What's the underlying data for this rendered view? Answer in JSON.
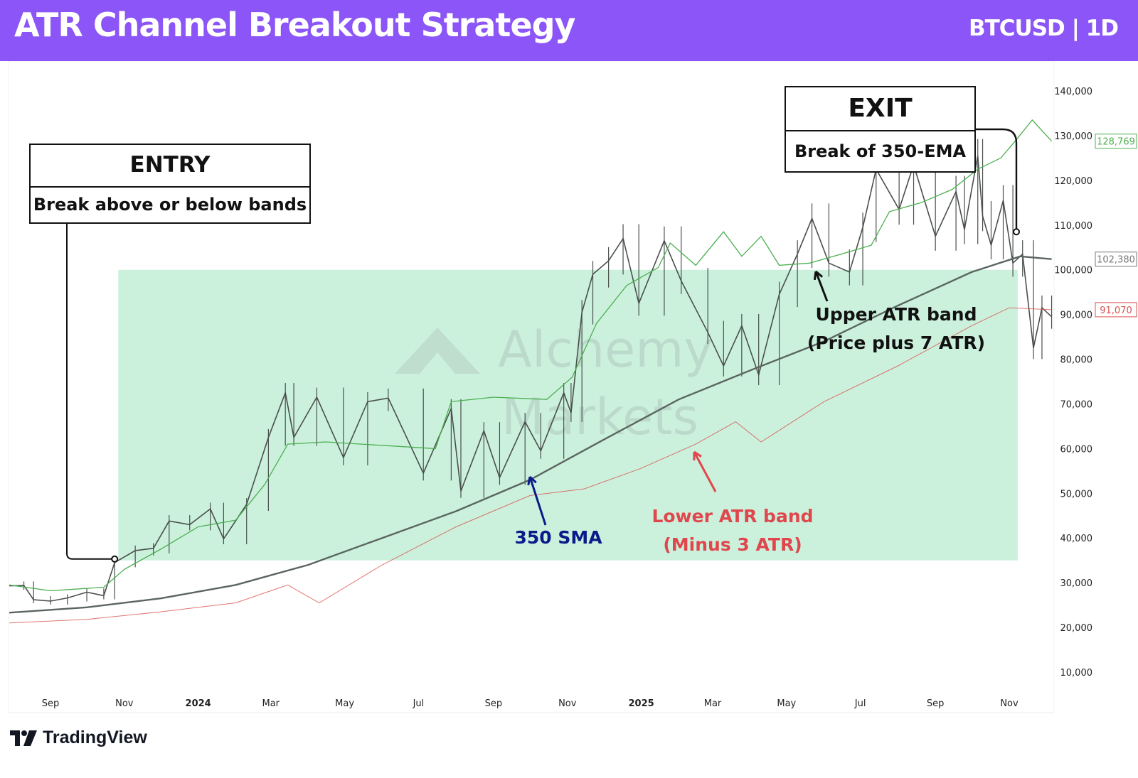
{
  "header": {
    "title": "ATR Channel Breakout Strategy",
    "symbol": "BTCUSD | 1D"
  },
  "brand": {
    "platform": "TradingView",
    "watermark": "Alchemy Markets"
  },
  "colors": {
    "header": "#8b55f7",
    "price": "#4a4f4c",
    "upper_band": "#4caf50",
    "sma": "#5b6560",
    "lower_band": "#d9534f",
    "highlight": "#b9ecd2",
    "sma_label": "#0d1a8a",
    "lower_label": "#e0474c"
  },
  "annotations": {
    "entry": {
      "title": "ENTRY",
      "text": "Break above or below bands"
    },
    "exit": {
      "title": "EXIT",
      "text": "Break of 350-EMA"
    },
    "upper": {
      "line1": "Upper ATR band",
      "line2": "(Price plus 7 ATR)"
    },
    "sma": {
      "text": "350 SMA"
    },
    "lower": {
      "line1": "Lower ATR band",
      "line2": "(Minus 3 ATR)"
    }
  },
  "chart_data": {
    "type": "line",
    "title": "ATR Channel Breakout Strategy",
    "x_range": [
      "2023-07-29",
      "2025-12-06"
    ],
    "ylim": [
      0,
      145000
    ],
    "grid": false,
    "y_ticks": [
      "10,000",
      "20,000",
      "30,000",
      "40,000",
      "50,000",
      "60,000",
      "70,000",
      "80,000",
      "90,000",
      "100,000",
      "110,000",
      "120,000",
      "130,000",
      "140,000"
    ],
    "x_ticks": [
      {
        "label": "Sep",
        "date": "2023-09-01",
        "bold": false
      },
      {
        "label": "Nov",
        "date": "2023-11-01",
        "bold": false
      },
      {
        "label": "2024",
        "date": "2024-01-01",
        "bold": true
      },
      {
        "label": "Mar",
        "date": "2024-03-01",
        "bold": false
      },
      {
        "label": "May",
        "date": "2024-05-01",
        "bold": false
      },
      {
        "label": "Jul",
        "date": "2024-07-01",
        "bold": false
      },
      {
        "label": "Sep",
        "date": "2024-09-01",
        "bold": false
      },
      {
        "label": "Nov",
        "date": "2024-11-01",
        "bold": false
      },
      {
        "label": "2025",
        "date": "2025-01-01",
        "bold": true
      },
      {
        "label": "Mar",
        "date": "2025-03-01",
        "bold": false
      },
      {
        "label": "May",
        "date": "2025-05-01",
        "bold": false
      },
      {
        "label": "Jul",
        "date": "2025-07-01",
        "bold": false
      },
      {
        "label": "Sep",
        "date": "2025-09-01",
        "bold": false
      },
      {
        "label": "Nov",
        "date": "2025-11-01",
        "bold": false
      }
    ],
    "highlight": {
      "from": "2023-10-27",
      "to": "2025-11-08",
      "low": 35000,
      "high": 100000
    },
    "entry_point": {
      "date": "2023-10-24",
      "value": 35300
    },
    "exit_point": {
      "date": "2025-11-04",
      "value": 108500
    },
    "last_values": {
      "upper_band": "128,769",
      "sma": "102,380",
      "lower_band": "91,070"
    },
    "series": [
      {
        "key": "price",
        "points": [
          [
            "2023-07-29",
            29300
          ],
          [
            "2023-08-10",
            29400
          ],
          [
            "2023-08-18",
            26200
          ],
          [
            "2023-09-01",
            25900
          ],
          [
            "2023-09-15",
            26600
          ],
          [
            "2023-10-01",
            27900
          ],
          [
            "2023-10-15",
            27100
          ],
          [
            "2023-10-24",
            34500
          ],
          [
            "2023-11-10",
            37200
          ],
          [
            "2023-11-25",
            37700
          ],
          [
            "2023-12-08",
            43800
          ],
          [
            "2023-12-25",
            43000
          ],
          [
            "2024-01-11",
            46500
          ],
          [
            "2024-01-22",
            39800
          ],
          [
            "2024-02-10",
            47500
          ],
          [
            "2024-02-28",
            62500
          ],
          [
            "2024-03-13",
            72500
          ],
          [
            "2024-03-20",
            62500
          ],
          [
            "2024-04-08",
            71500
          ],
          [
            "2024-04-30",
            58000
          ],
          [
            "2024-05-20",
            70500
          ],
          [
            "2024-06-06",
            71300
          ],
          [
            "2024-07-05",
            54500
          ],
          [
            "2024-07-28",
            69000
          ],
          [
            "2024-08-05",
            50500
          ],
          [
            "2024-08-24",
            64000
          ],
          [
            "2024-09-06",
            53500
          ],
          [
            "2024-09-27",
            66000
          ],
          [
            "2024-10-10",
            59500
          ],
          [
            "2024-10-29",
            72500
          ],
          [
            "2024-11-04",
            68000
          ],
          [
            "2024-11-13",
            90500
          ],
          [
            "2024-11-22",
            99000
          ],
          [
            "2024-12-05",
            102000
          ],
          [
            "2024-12-17",
            107000
          ],
          [
            "2024-12-30",
            92500
          ],
          [
            "2025-01-20",
            106500
          ],
          [
            "2025-02-03",
            97500
          ],
          [
            "2025-02-25",
            86000
          ],
          [
            "2025-03-10",
            78500
          ],
          [
            "2025-03-25",
            87500
          ],
          [
            "2025-04-08",
            76500
          ],
          [
            "2025-04-25",
            94500
          ],
          [
            "2025-05-10",
            103500
          ],
          [
            "2025-05-22",
            111500
          ],
          [
            "2025-06-05",
            101500
          ],
          [
            "2025-06-22",
            99500
          ],
          [
            "2025-07-03",
            109500
          ],
          [
            "2025-07-14",
            122500
          ],
          [
            "2025-08-02",
            113500
          ],
          [
            "2025-08-14",
            123500
          ],
          [
            "2025-09-01",
            107500
          ],
          [
            "2025-09-18",
            117500
          ],
          [
            "2025-09-25",
            109000
          ],
          [
            "2025-10-06",
            125500
          ],
          [
            "2025-10-10",
            112000
          ],
          [
            "2025-10-17",
            105500
          ],
          [
            "2025-10-27",
            115500
          ],
          [
            "2025-11-04",
            101500
          ],
          [
            "2025-11-12",
            103500
          ],
          [
            "2025-11-21",
            82500
          ],
          [
            "2025-11-28",
            91500
          ],
          [
            "2025-12-06",
            89500
          ]
        ]
      },
      {
        "key": "upper_band",
        "points": [
          [
            "2023-07-29",
            29500
          ],
          [
            "2023-09-01",
            28200
          ],
          [
            "2023-10-15",
            29000
          ],
          [
            "2023-11-01",
            33000
          ],
          [
            "2023-12-01",
            37500
          ],
          [
            "2024-01-01",
            42500
          ],
          [
            "2024-02-01",
            44000
          ],
          [
            "2024-02-25",
            52000
          ],
          [
            "2024-03-15",
            61000
          ],
          [
            "2024-04-15",
            61500
          ],
          [
            "2024-05-15",
            61000
          ],
          [
            "2024-06-15",
            60500
          ],
          [
            "2024-07-15",
            60000
          ],
          [
            "2024-07-28",
            70500
          ],
          [
            "2024-09-01",
            71500
          ],
          [
            "2024-10-15",
            71000
          ],
          [
            "2024-11-05",
            76000
          ],
          [
            "2024-11-25",
            88000
          ],
          [
            "2024-12-20",
            96500
          ],
          [
            "2025-01-15",
            100500
          ],
          [
            "2025-01-25",
            106000
          ],
          [
            "2025-02-15",
            101000
          ],
          [
            "2025-03-10",
            108500
          ],
          [
            "2025-03-25",
            103000
          ],
          [
            "2025-04-10",
            107500
          ],
          [
            "2025-04-25",
            101000
          ],
          [
            "2025-05-20",
            101500
          ],
          [
            "2025-06-15",
            103500
          ],
          [
            "2025-07-10",
            105500
          ],
          [
            "2025-07-25",
            113000
          ],
          [
            "2025-08-20",
            115000
          ],
          [
            "2025-09-15",
            118000
          ],
          [
            "2025-10-06",
            122500
          ],
          [
            "2025-10-25",
            125000
          ],
          [
            "2025-11-05",
            128500
          ],
          [
            "2025-11-20",
            133500
          ],
          [
            "2025-12-06",
            128769
          ]
        ]
      },
      {
        "key": "sma",
        "points": [
          [
            "2023-07-29",
            23300
          ],
          [
            "2023-10-01",
            24500
          ],
          [
            "2023-12-01",
            26500
          ],
          [
            "2024-02-01",
            29500
          ],
          [
            "2024-04-01",
            34000
          ],
          [
            "2024-06-01",
            40000
          ],
          [
            "2024-08-01",
            46000
          ],
          [
            "2024-10-01",
            53000
          ],
          [
            "2024-12-01",
            62000
          ],
          [
            "2025-02-01",
            71000
          ],
          [
            "2025-04-01",
            77500
          ],
          [
            "2025-06-01",
            84000
          ],
          [
            "2025-08-01",
            92000
          ],
          [
            "2025-10-01",
            99500
          ],
          [
            "2025-11-10",
            103000
          ],
          [
            "2025-12-06",
            102380
          ]
        ]
      },
      {
        "key": "lower_band",
        "points": [
          [
            "2023-07-29",
            21000
          ],
          [
            "2023-10-01",
            21800
          ],
          [
            "2023-12-01",
            23500
          ],
          [
            "2024-02-01",
            25500
          ],
          [
            "2024-03-15",
            29500
          ],
          [
            "2024-04-10",
            25500
          ],
          [
            "2024-06-01",
            34000
          ],
          [
            "2024-08-01",
            42500
          ],
          [
            "2024-10-01",
            49500
          ],
          [
            "2024-11-15",
            51000
          ],
          [
            "2024-12-31",
            55500
          ],
          [
            "2025-02-15",
            61000
          ],
          [
            "2025-03-20",
            66000
          ],
          [
            "2025-04-10",
            61500
          ],
          [
            "2025-06-01",
            70500
          ],
          [
            "2025-08-01",
            78500
          ],
          [
            "2025-10-01",
            87500
          ],
          [
            "2025-11-01",
            91500
          ],
          [
            "2025-12-06",
            91070
          ]
        ]
      }
    ]
  }
}
